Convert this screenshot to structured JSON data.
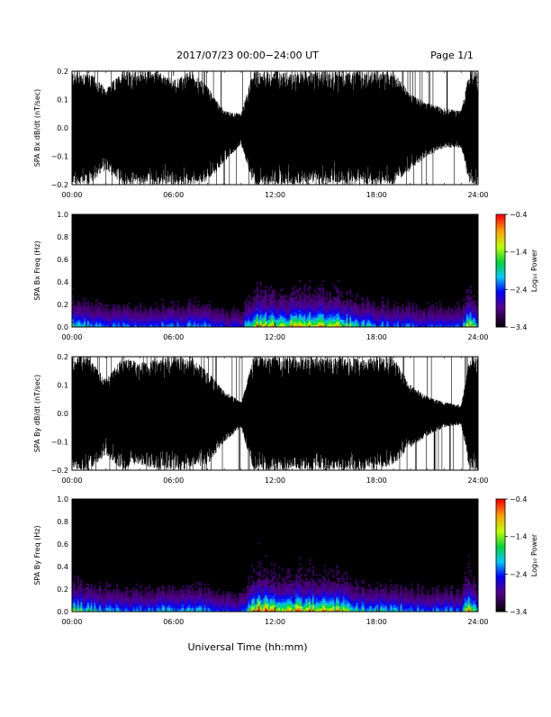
{
  "header": {
    "title": "2017/07/23  00:00−24:00 UT",
    "page": "Page 1/1"
  },
  "footer": {
    "xlabel": "Universal Time (hh:mm)"
  },
  "chart_data": [
    {
      "type": "line",
      "ylabel": "SPA Bx dB/dt (nT/sec)",
      "xlim": [
        0,
        24
      ],
      "ylim": [
        -0.2,
        0.2
      ],
      "xticks": [
        "00:00",
        "06:00",
        "12:00",
        "18:00",
        "24:00"
      ],
      "yticks": [
        "−0.2",
        "−0.1",
        "0.0",
        "0.1",
        "0.2"
      ],
      "envelope": {
        "hours": [
          0,
          1,
          2,
          3,
          4,
          5,
          6,
          7,
          8,
          9,
          10,
          10.7,
          11,
          12,
          13,
          14,
          15,
          16,
          17,
          18,
          19,
          20,
          21,
          22,
          23,
          23.5,
          24
        ],
        "upper": [
          0.2,
          0.2,
          0.14,
          0.2,
          0.2,
          0.2,
          0.17,
          0.2,
          0.15,
          0.06,
          0.05,
          0.2,
          0.2,
          0.2,
          0.2,
          0.2,
          0.2,
          0.2,
          0.2,
          0.2,
          0.2,
          0.12,
          0.09,
          0.07,
          0.06,
          0.2,
          0.2
        ],
        "lower": [
          -0.2,
          -0.2,
          -0.15,
          -0.2,
          -0.2,
          -0.2,
          -0.2,
          -0.2,
          -0.19,
          -0.12,
          -0.06,
          -0.2,
          -0.2,
          -0.2,
          -0.2,
          -0.2,
          -0.2,
          -0.2,
          -0.2,
          -0.2,
          -0.2,
          -0.15,
          -0.1,
          -0.07,
          -0.07,
          -0.2,
          -0.2
        ]
      }
    },
    {
      "type": "heatmap",
      "ylabel": "SPA Bx Freq (Hz)",
      "xlim": [
        0,
        24
      ],
      "ylim": [
        0,
        1.0
      ],
      "xticks": [
        "00:00",
        "06:00",
        "12:00",
        "18:00",
        "24:00"
      ],
      "yticks": [
        "0.0",
        "0.2",
        "0.4",
        "0.6",
        "0.8",
        "1.0"
      ],
      "colorbar": {
        "label": "Log₁₀ Power",
        "range": [
          -3.4,
          -0.4
        ],
        "ticks": [
          "−0.4",
          "−1.4",
          "−2.4",
          "−3.4"
        ]
      },
      "activity": {
        "hours": [
          0,
          1,
          2,
          3,
          4,
          5,
          6,
          7,
          8,
          9,
          10,
          11,
          12,
          13,
          14,
          15,
          16,
          17,
          18,
          19,
          20,
          21,
          22,
          23,
          23.5,
          24
        ],
        "level": [
          0.6,
          0.5,
          0.4,
          0.4,
          0.4,
          0.4,
          0.4,
          0.45,
          0.4,
          0.3,
          0.3,
          0.9,
          0.85,
          0.8,
          0.8,
          0.8,
          0.75,
          0.5,
          0.45,
          0.45,
          0.4,
          0.35,
          0.35,
          0.35,
          0.9,
          0.5
        ]
      }
    },
    {
      "type": "line",
      "ylabel": "SPA By dB/dt (nT/sec)",
      "xlim": [
        0,
        24
      ],
      "ylim": [
        -0.2,
        0.2
      ],
      "xticks": [
        "00:00",
        "06:00",
        "12:00",
        "18:00",
        "24:00"
      ],
      "yticks": [
        "−0.2",
        "−0.1",
        "0.0",
        "0.1",
        "0.2"
      ],
      "envelope": {
        "hours": [
          0,
          1,
          2,
          3,
          4,
          5,
          6,
          7,
          8,
          9,
          10,
          10.7,
          11,
          12,
          13,
          14,
          15,
          16,
          17,
          18,
          19,
          20,
          21,
          22,
          23,
          23.5,
          24
        ],
        "upper": [
          0.2,
          0.2,
          0.12,
          0.2,
          0.18,
          0.2,
          0.2,
          0.2,
          0.15,
          0.08,
          0.04,
          0.2,
          0.2,
          0.2,
          0.2,
          0.2,
          0.2,
          0.2,
          0.2,
          0.2,
          0.2,
          0.1,
          0.06,
          0.04,
          0.03,
          0.2,
          0.2
        ],
        "lower": [
          -0.2,
          -0.2,
          -0.15,
          -0.2,
          -0.18,
          -0.2,
          -0.2,
          -0.2,
          -0.18,
          -0.1,
          -0.05,
          -0.2,
          -0.2,
          -0.2,
          -0.2,
          -0.2,
          -0.2,
          -0.2,
          -0.2,
          -0.2,
          -0.18,
          -0.12,
          -0.08,
          -0.05,
          -0.04,
          -0.2,
          -0.2
        ]
      }
    },
    {
      "type": "heatmap",
      "ylabel": "SPA By Freq (Hz)",
      "xlim": [
        0,
        24
      ],
      "ylim": [
        0,
        1.0
      ],
      "xticks": [
        "00:00",
        "06:00",
        "12:00",
        "18:00",
        "24:00"
      ],
      "yticks": [
        "0.0",
        "0.2",
        "0.4",
        "0.6",
        "0.8",
        "1.0"
      ],
      "colorbar": {
        "label": "Log₁₀ Power",
        "range": [
          -3.4,
          -0.4
        ],
        "ticks": [
          "−0.4",
          "−1.4",
          "−2.4",
          "−3.4"
        ]
      },
      "activity": {
        "hours": [
          0,
          1,
          2,
          3,
          4,
          5,
          6,
          7,
          8,
          9,
          10,
          11,
          12,
          13,
          14,
          15,
          16,
          17,
          18,
          19,
          20,
          21,
          22,
          23,
          23.5,
          24
        ],
        "level": [
          0.7,
          0.55,
          0.45,
          0.45,
          0.45,
          0.45,
          0.45,
          0.5,
          0.45,
          0.35,
          0.3,
          1.0,
          0.9,
          0.85,
          0.85,
          0.85,
          0.8,
          0.55,
          0.5,
          0.5,
          0.45,
          0.4,
          0.4,
          0.4,
          0.95,
          0.5
        ]
      }
    }
  ]
}
